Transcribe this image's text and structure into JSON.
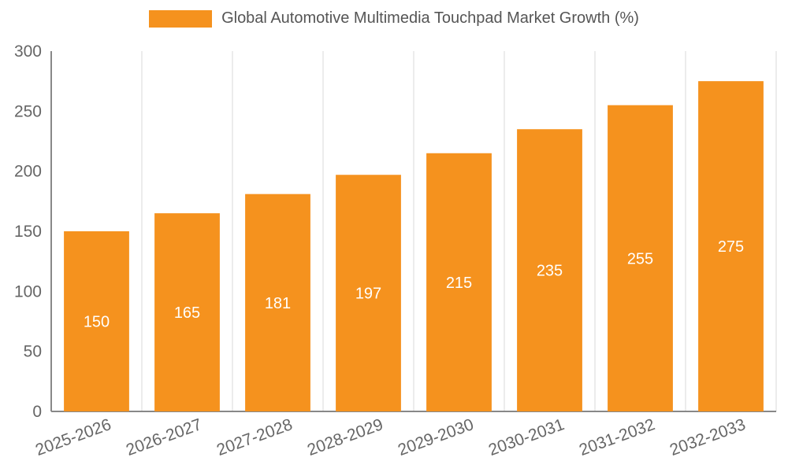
{
  "chart_data": {
    "type": "bar",
    "title": "Global Automotive Multimedia Touchpad Market Growth (%)",
    "categories": [
      "2025-2026",
      "2026-2027",
      "2027-2028",
      "2028-2029",
      "2029-2030",
      "2030-2031",
      "2031-2032",
      "2032-2033"
    ],
    "values": [
      150,
      165,
      181,
      197,
      215,
      235,
      255,
      275
    ],
    "xlabel": "",
    "ylabel": "",
    "ylim": [
      0,
      300
    ],
    "yticks": [
      0,
      50,
      100,
      150,
      200,
      250,
      300
    ],
    "grid": "vertical",
    "legend_position": "top",
    "colors": {
      "bar": "#f5921e",
      "bar_value_label": "#ffffff",
      "axis_line": "#888888",
      "grid_line": "#d9d9d9",
      "tick_label": "#666666",
      "legend_text": "#555555"
    },
    "legend": {
      "swatch_color": "#f5921e",
      "label": "Global Automotive Multimedia Touchpad Market Growth (%)"
    }
  }
}
